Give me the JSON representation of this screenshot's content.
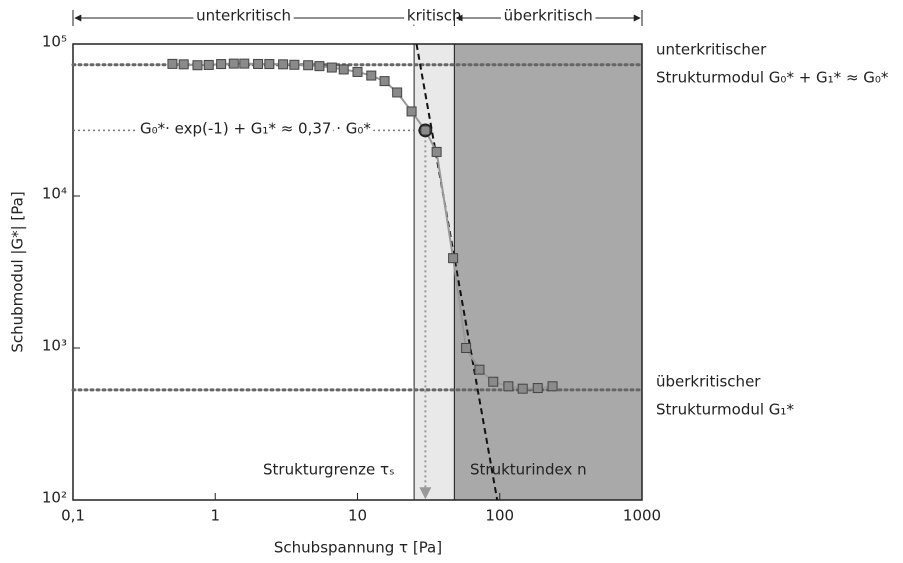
{
  "chart_data": {
    "type": "scatter",
    "xlabel": "Schubspannung τ [Pa]",
    "ylabel": "Schubmodul |G*| [Pa]",
    "log_x": true,
    "log_y": true,
    "xlim": [
      0.1,
      1000
    ],
    "ylim": [
      100,
      100000
    ],
    "xticks": [
      {
        "value": 0.1,
        "label": "0,1"
      },
      1,
      10,
      100,
      1000
    ],
    "yticks": [
      {
        "value": 100,
        "label": "10²"
      },
      {
        "value": 1000,
        "label": "10³"
      },
      {
        "value": 10000,
        "label": "10⁴"
      },
      {
        "value": 100000,
        "label": "10⁵"
      }
    ],
    "regions": [
      {
        "label": "unterkritisch",
        "x": [
          0.1,
          25
        ]
      },
      {
        "label": "kritisch",
        "x": [
          25,
          48
        ],
        "color": "#e9e9e9"
      },
      {
        "label": "überkritisch",
        "x": [
          48,
          1000
        ],
        "color": "#a9a9a9"
      }
    ],
    "series": [
      {
        "color": "#8a8a8a",
        "x": [
          0.5,
          0.6,
          0.75,
          0.9,
          1.1,
          1.35,
          1.6,
          2,
          2.4,
          3,
          3.6,
          4.5,
          5.4,
          6.6,
          8,
          10,
          12.5,
          15.5,
          19,
          24,
          30,
          36,
          47,
          58,
          72,
          90,
          115,
          145,
          185,
          235
        ],
        "values": [
          74000,
          73500,
          72500,
          72800,
          73800,
          74300,
          74300,
          73900,
          73800,
          73500,
          73000,
          72500,
          71500,
          70000,
          68000,
          65500,
          62000,
          57000,
          48000,
          36000,
          27000,
          19500,
          3900,
          1000,
          720,
          600,
          560,
          540,
          545,
          560
        ]
      }
    ],
    "fit_line": {
      "x": [
        26,
        96
      ],
      "y": [
        100000,
        100
      ]
    },
    "hlines": [
      73000,
      530
    ],
    "threshold": {
      "x": 30,
      "y": 27000
    },
    "annotations": [
      "unterkritischer",
      "Strukturmodul G₀* + G₁* ≈ G₀*",
      "überkritischer",
      "Strukturmodul G₁*",
      "G₀*· exp(-1) + G₁* ≈ 0,37 · G₀*",
      "Strukturgrenze τₛ",
      "Strukturindex n"
    ]
  }
}
